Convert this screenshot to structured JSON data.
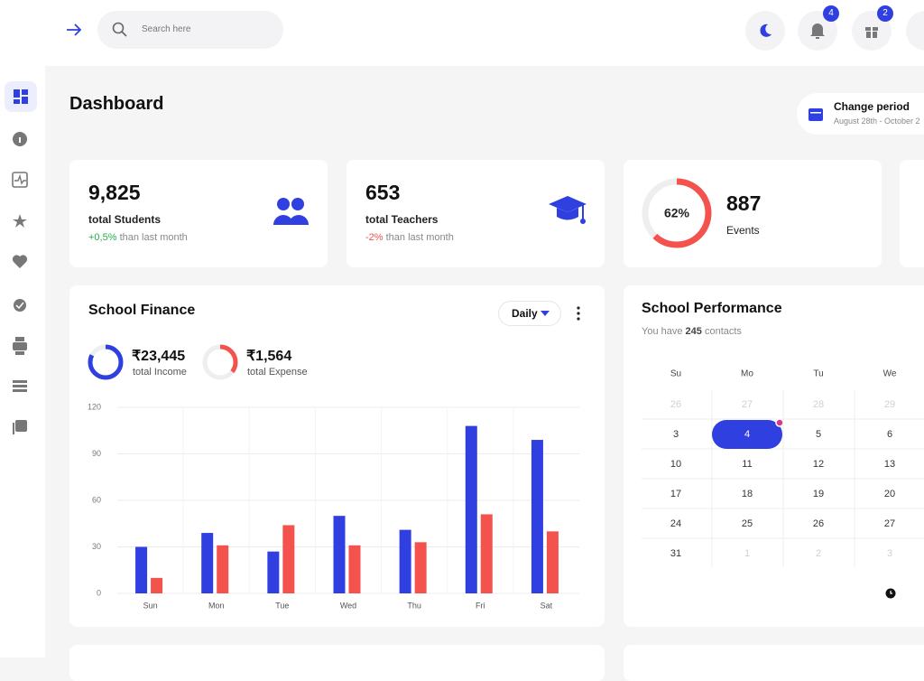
{
  "header": {
    "search_placeholder": "Search here",
    "notifications_badge": "4",
    "gifts_badge": "2"
  },
  "page_title": "Dashboard",
  "period": {
    "title": "Change period",
    "range": "August 28th - October 2"
  },
  "stats": [
    {
      "value": "9,825",
      "label": "total Students",
      "change": "+0,5%",
      "note": "than last month"
    },
    {
      "value": "653",
      "label": "total Teachers",
      "change": "-2%",
      "note": "than last month"
    }
  ],
  "events": {
    "percent": 62,
    "percent_label": "62%",
    "value": "887",
    "label": "Events"
  },
  "finance": {
    "title": "School Finance",
    "dropdown": "Daily",
    "income": {
      "value": "₹23,445",
      "label": "total Income"
    },
    "expense": {
      "value": "₹1,564",
      "label": "total Expense"
    }
  },
  "chart_data": {
    "type": "bar",
    "categories": [
      "Sun",
      "Mon",
      "Tue",
      "Wed",
      "Thu",
      "Fri",
      "Sat"
    ],
    "series": [
      {
        "color": "#2f3fe0",
        "values": [
          30,
          39,
          27,
          50,
          41,
          108,
          99
        ]
      },
      {
        "color": "#f4524d",
        "values": [
          10,
          31,
          44,
          31,
          33,
          51,
          40
        ]
      }
    ],
    "ylim": [
      0,
      120
    ],
    "yticks": [
      0,
      30,
      60,
      90,
      120
    ],
    "grid": true
  },
  "performance": {
    "title": "School Performance",
    "contacts_prefix": "You have",
    "contacts_count": "245",
    "contacts_suffix": "contacts",
    "weekdays": [
      "Su",
      "Mo",
      "Tu",
      "We"
    ],
    "weeks": [
      [
        26,
        27,
        28,
        29
      ],
      [
        3,
        4,
        5,
        6
      ],
      [
        10,
        11,
        12,
        13
      ],
      [
        17,
        18,
        19,
        20
      ],
      [
        24,
        25,
        26,
        27
      ],
      [
        31,
        1,
        2,
        3
      ]
    ]
  }
}
